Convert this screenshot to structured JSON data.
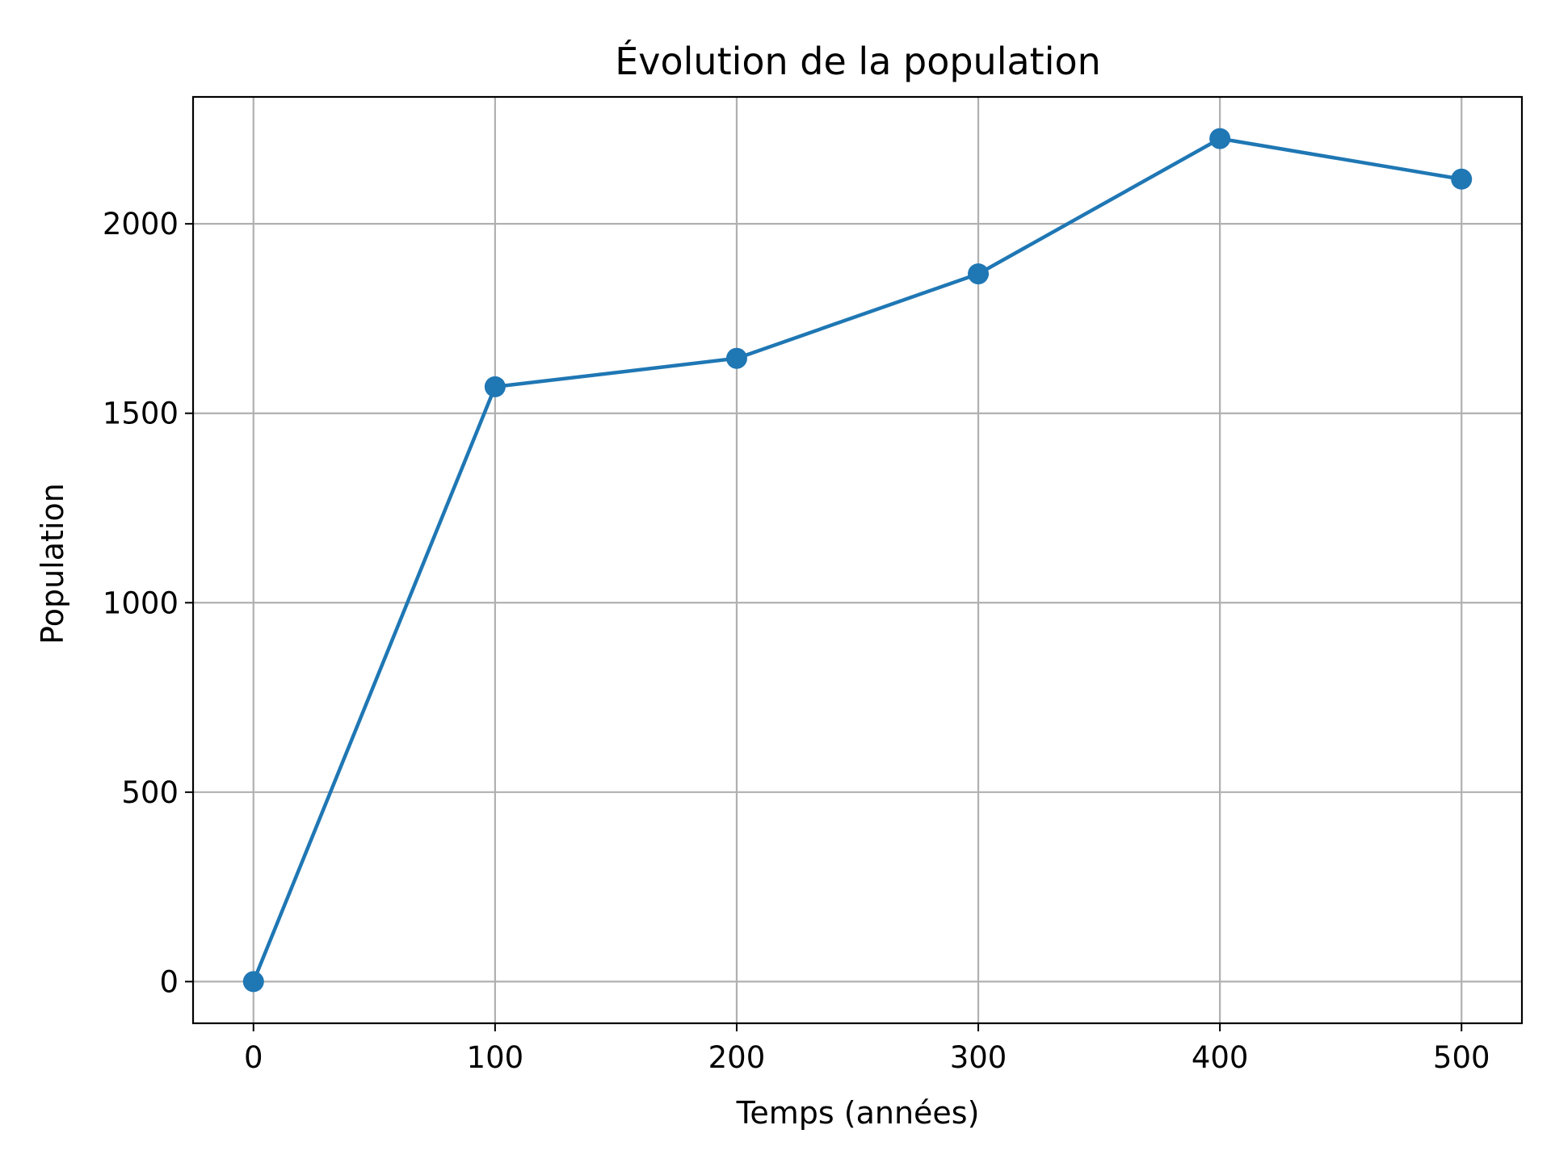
{
  "chart_data": {
    "type": "line",
    "title": "Évolution de la population",
    "xlabel": "Temps (années)",
    "ylabel": "Population",
    "x": [
      0,
      100,
      200,
      300,
      400,
      500
    ],
    "series": [
      {
        "values": [
          0,
          1570,
          1645,
          1868,
          2225,
          2118
        ]
      }
    ],
    "xlim": [
      -25,
      525
    ],
    "ylim": [
      -110,
      2335
    ],
    "xticks": [
      "0",
      "100",
      "200",
      "300",
      "400",
      "500"
    ],
    "yticks": [
      "0",
      "500",
      "1000",
      "1500",
      "2000"
    ],
    "grid": true,
    "marker": "circle",
    "colors": {
      "line": "#1f77b4",
      "grid": "#b0b0b0",
      "axes": "#000000"
    }
  }
}
